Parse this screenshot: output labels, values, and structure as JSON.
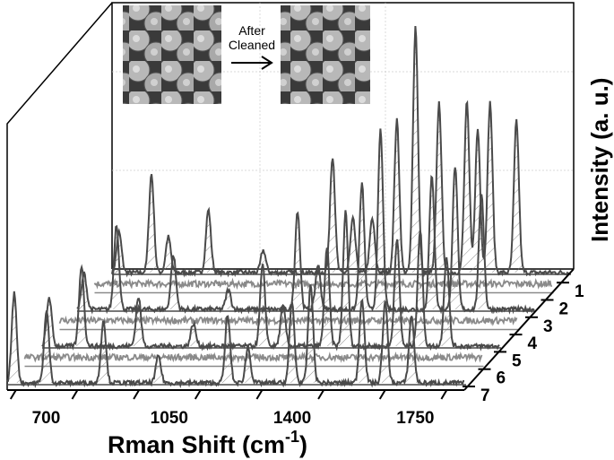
{
  "chart_data": {
    "type": "line",
    "subtype": "3d-waterfall",
    "xlabel": "Rman Shift (cm",
    "xlabel_sup": "-1",
    "xlabel_close": ")",
    "ylabel": "Intensity (a. u.)",
    "xlim": [
      500,
      1800
    ],
    "x_ticks": [
      700,
      1050,
      1400,
      1750
    ],
    "x_minor_ticks": [
      525,
      875,
      1225,
      1575
    ],
    "depth_labels": [
      "1",
      "2",
      "3",
      "4",
      "5",
      "6",
      "7"
    ],
    "grid": true,
    "inset": {
      "caption_line1": "After",
      "caption_line2": "Cleaned",
      "arrow": "right-arrow"
    },
    "colors": {
      "dark_series": "#4a4a4a",
      "light_series": "#8a8a8a",
      "axis": "#000000"
    },
    "series": [
      {
        "name": "1",
        "style": "dark",
        "peaks": [
          [
            520,
            45
          ],
          [
            612,
            110
          ],
          [
            660,
            40
          ],
          [
            774,
            70
          ],
          [
            930,
            25
          ],
          [
            1127,
            130
          ],
          [
            1185,
            60
          ],
          [
            1240,
            60
          ],
          [
            1310,
            170
          ],
          [
            1363,
            275
          ],
          [
            1430,
            190
          ],
          [
            1509,
            190
          ],
          [
            1540,
            160
          ],
          [
            1575,
            190
          ],
          [
            1650,
            170
          ]
        ]
      },
      {
        "name": "2",
        "style": "light",
        "peaks": []
      },
      {
        "name": "3",
        "style": "dark",
        "peaks": [
          [
            520,
            40
          ],
          [
            612,
            95
          ],
          [
            774,
            60
          ],
          [
            930,
            22
          ],
          [
            1127,
            110
          ],
          [
            1185,
            50
          ],
          [
            1310,
            140
          ],
          [
            1363,
            200
          ],
          [
            1509,
            150
          ],
          [
            1575,
            160
          ],
          [
            1650,
            130
          ]
        ]
      },
      {
        "name": "4",
        "style": "light",
        "peaks": []
      },
      {
        "name": "5",
        "style": "dark",
        "peaks": [
          [
            520,
            55
          ],
          [
            612,
            90
          ],
          [
            774,
            55
          ],
          [
            930,
            25
          ],
          [
            1127,
            90
          ],
          [
            1185,
            45
          ],
          [
            1310,
            110
          ],
          [
            1363,
            150
          ],
          [
            1509,
            120
          ],
          [
            1575,
            130
          ],
          [
            1650,
            100
          ]
        ]
      },
      {
        "name": "6",
        "style": "light",
        "peaks": []
      },
      {
        "name": "7",
        "style": "dark",
        "peaks": [
          [
            520,
            100
          ],
          [
            612,
            80
          ],
          [
            774,
            70
          ],
          [
            930,
            30
          ],
          [
            1127,
            75
          ],
          [
            1185,
            40
          ],
          [
            1310,
            90
          ],
          [
            1363,
            110
          ],
          [
            1509,
            95
          ],
          [
            1575,
            90
          ],
          [
            1650,
            75
          ]
        ]
      }
    ]
  }
}
